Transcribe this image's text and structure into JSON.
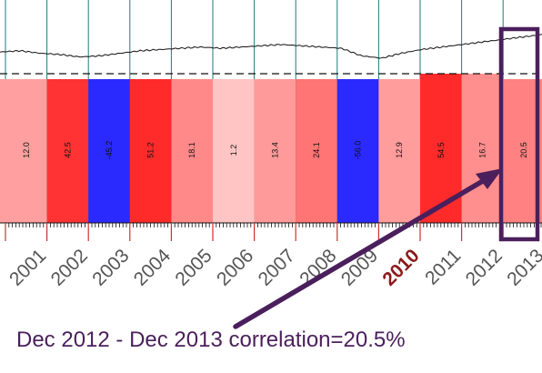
{
  "chart_data": {
    "type": "bar",
    "categories": [
      "2001",
      "2002",
      "2003",
      "2004",
      "2005",
      "2006",
      "2007",
      "2008",
      "2009",
      "2010",
      "2011",
      "2012",
      "2013"
    ],
    "values": [
      12.0,
      42.5,
      -45.2,
      51.2,
      18.1,
      1.2,
      13.4,
      24.1,
      -56.0,
      12.9,
      54.5,
      16.7,
      20.5
    ],
    "value_labels": [
      "12.0",
      "42.5",
      "-45.2",
      "51.2",
      "18.1",
      "1.2",
      "13.4",
      "24.1",
      "-56.0",
      "12.9",
      "54.5",
      "16.7",
      "20.5"
    ],
    "tick_labels": [
      "2001",
      "2002",
      "2003",
      "2004",
      "2005",
      "2006",
      "2007",
      "2008",
      "2009",
      "2010",
      "2011",
      "2012",
      "2013"
    ],
    "highlighted_year": "2010",
    "highlighted_segment": "2013",
    "xlabel": "",
    "ylabel": "",
    "title": "",
    "grid": true,
    "colors": {
      "positive": "#ff2a2a",
      "positive_light": "#ffc8c8",
      "negative": "#2a2aff",
      "gridline": "#1f7a7a",
      "price_line": "#111111",
      "dashed_line": "#111111",
      "highlight_box": "#4a1f5c",
      "arrow": "#4a1f5c",
      "highlight_year": "#8b1a1a"
    },
    "price_series": [
      100,
      101,
      99,
      98,
      96,
      97,
      99,
      101,
      102,
      103,
      104,
      103,
      104,
      105,
      106,
      105,
      104,
      103,
      97,
      95,
      99,
      102,
      104,
      106,
      108,
      110,
      112,
      114
    ]
  },
  "annotation": {
    "caption": "Dec 2012 - Dec 2013 correlation=20.5%"
  }
}
